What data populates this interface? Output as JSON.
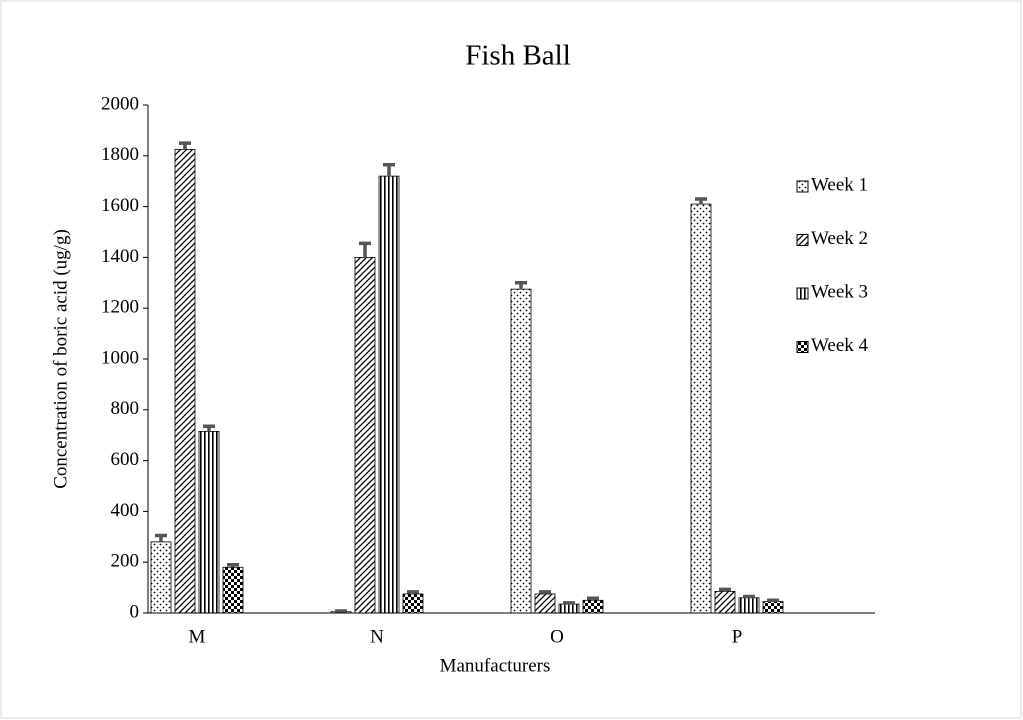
{
  "chart_data": {
    "type": "bar",
    "title": "Fish Ball",
    "x_label": "Manufacturers",
    "y_label": "Concentration of boric acid (ug/g)",
    "categories": [
      "M",
      "N",
      "O",
      "P"
    ],
    "series": [
      {
        "name": "Week 1",
        "color": "#000000",
        "pattern": "dots",
        "values": [
          280,
          5,
          1275,
          1610
        ],
        "errors": [
          25,
          3,
          25,
          20
        ]
      },
      {
        "name": "Week 2",
        "color": "#000000",
        "pattern": "diagonal",
        "values": [
          1825,
          1400,
          75,
          85
        ],
        "errors": [
          25,
          55,
          8,
          8
        ]
      },
      {
        "name": "Week 3",
        "color": "#000000",
        "pattern": "vertical",
        "values": [
          715,
          1720,
          35,
          60
        ],
        "errors": [
          20,
          45,
          5,
          5
        ]
      },
      {
        "name": "Week 4",
        "color": "#000000",
        "pattern": "checker",
        "values": [
          180,
          75,
          50,
          45
        ],
        "errors": [
          10,
          8,
          8,
          5
        ]
      }
    ],
    "error_color": "#555555",
    "ylim": [
      0,
      2000
    ],
    "yticks": [
      0,
      200,
      400,
      600,
      800,
      1000,
      1200,
      1400,
      1600,
      1800,
      2000
    ],
    "grid": false,
    "legend": "right"
  }
}
